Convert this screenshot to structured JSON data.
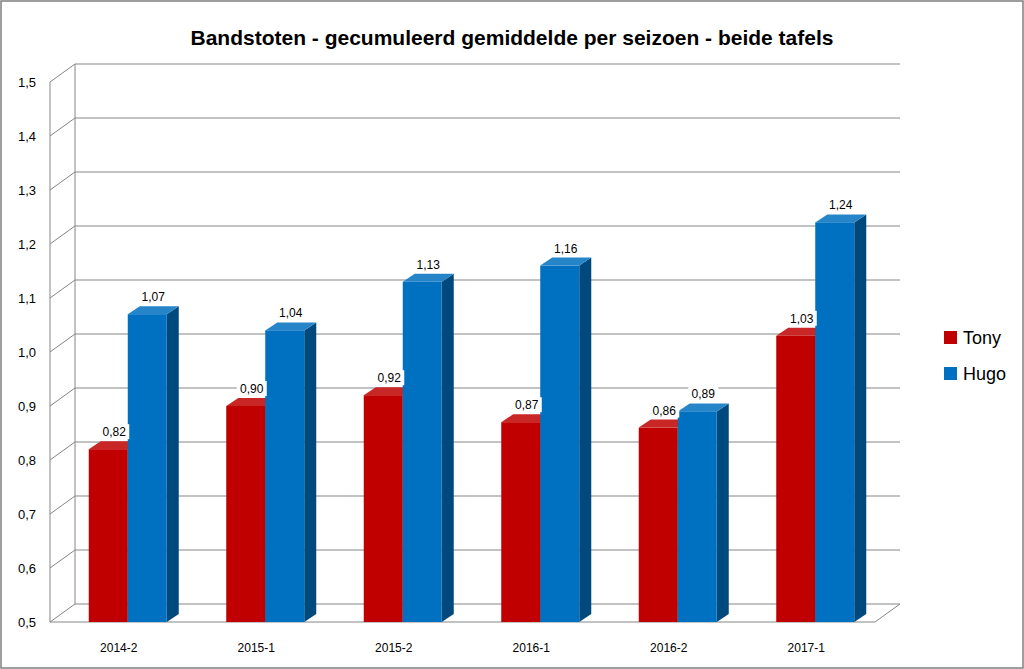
{
  "chart_data": {
    "type": "bar",
    "title": "Bandstoten - gecumuleerd gemiddelde per seizoen - beide tafels",
    "categories": [
      "2014-2",
      "2015-1",
      "2015-2",
      "2016-1",
      "2016-2",
      "2017-1"
    ],
    "series": [
      {
        "name": "Tony",
        "color": "#c00000",
        "values": [
          0.82,
          0.9,
          0.92,
          0.87,
          0.86,
          1.03
        ],
        "value_labels": [
          "0,82",
          "0,90",
          "0,92",
          "0,87",
          "0,86",
          "1,03"
        ]
      },
      {
        "name": "Hugo",
        "color": "#0070c0",
        "values": [
          1.07,
          1.04,
          1.13,
          1.16,
          0.89,
          1.24
        ],
        "value_labels": [
          "1,07",
          "1,04",
          "1,13",
          "1,16",
          "0,89",
          "1,24"
        ]
      }
    ],
    "ylim": [
      0.5,
      1.5
    ],
    "yticks": [
      {
        "value": 0.5,
        "label": "0,5"
      },
      {
        "value": 0.6,
        "label": "0,6"
      },
      {
        "value": 0.7,
        "label": "0,7"
      },
      {
        "value": 0.8,
        "label": "0,8"
      },
      {
        "value": 0.9,
        "label": "0,9"
      },
      {
        "value": 1.0,
        "label": "1,0"
      },
      {
        "value": 1.1,
        "label": "1,1"
      },
      {
        "value": 1.2,
        "label": "1,2"
      },
      {
        "value": 1.3,
        "label": "1,3"
      },
      {
        "value": 1.4,
        "label": "1,4"
      },
      {
        "value": 1.5,
        "label": "1,5"
      }
    ],
    "grid": true,
    "legend": "right",
    "data_labels": true
  }
}
